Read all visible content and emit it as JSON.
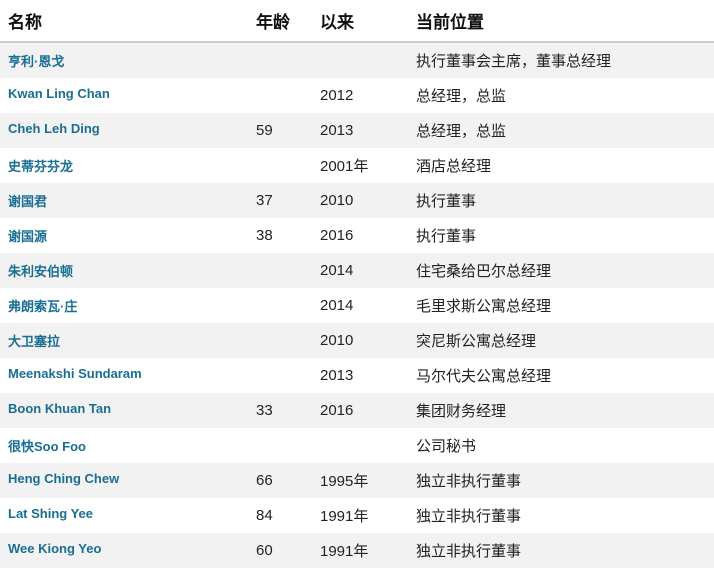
{
  "headers": [
    "名称",
    "年龄",
    "以来",
    "当前位置"
  ],
  "colors": {
    "link": "#1a6e94",
    "stripe": "#f2f2f2",
    "border": "#cccccc"
  },
  "rows": [
    {
      "name": "亨利·恩戈",
      "age": "",
      "since": "",
      "position": "执行董事会主席，董事总经理"
    },
    {
      "name": "Kwan Ling Chan",
      "age": "",
      "since": "2012",
      "position": "总经理，总监"
    },
    {
      "name": "Cheh Leh Ding",
      "age": "59",
      "since": "2013",
      "position": "总经理，总监"
    },
    {
      "name": "史蒂芬芬龙",
      "age": "",
      "since": "2001年",
      "position": "酒店总经理"
    },
    {
      "name": "谢国君",
      "age": "37",
      "since": "2010",
      "position": "执行董事"
    },
    {
      "name": "谢国源",
      "age": "38",
      "since": "2016",
      "position": "执行董事"
    },
    {
      "name": "朱利安伯顿",
      "age": "",
      "since": "2014",
      "position": "住宅桑给巴尔总经理"
    },
    {
      "name": "弗朗索瓦·庄",
      "age": "",
      "since": "2014",
      "position": "毛里求斯公寓总经理"
    },
    {
      "name": "大卫塞拉",
      "age": "",
      "since": "2010",
      "position": "突尼斯公寓总经理"
    },
    {
      "name": "Meenakshi Sundaram",
      "age": "",
      "since": "2013",
      "position": "马尔代夫公寓总经理"
    },
    {
      "name": "Boon Khuan Tan",
      "age": "33",
      "since": "2016",
      "position": "集团财务经理"
    },
    {
      "name": "很快Soo Foo",
      "age": "",
      "since": "",
      "position": "公司秘书"
    },
    {
      "name": "Heng Ching Chew",
      "age": "66",
      "since": "1995年",
      "position": "独立非执行董事"
    },
    {
      "name": "Lat Shing Yee",
      "age": "84",
      "since": "1991年",
      "position": "独立非执行董事"
    },
    {
      "name": "Wee Kiong Yeo",
      "age": "60",
      "since": "1991年",
      "position": "独立非执行董事"
    }
  ]
}
